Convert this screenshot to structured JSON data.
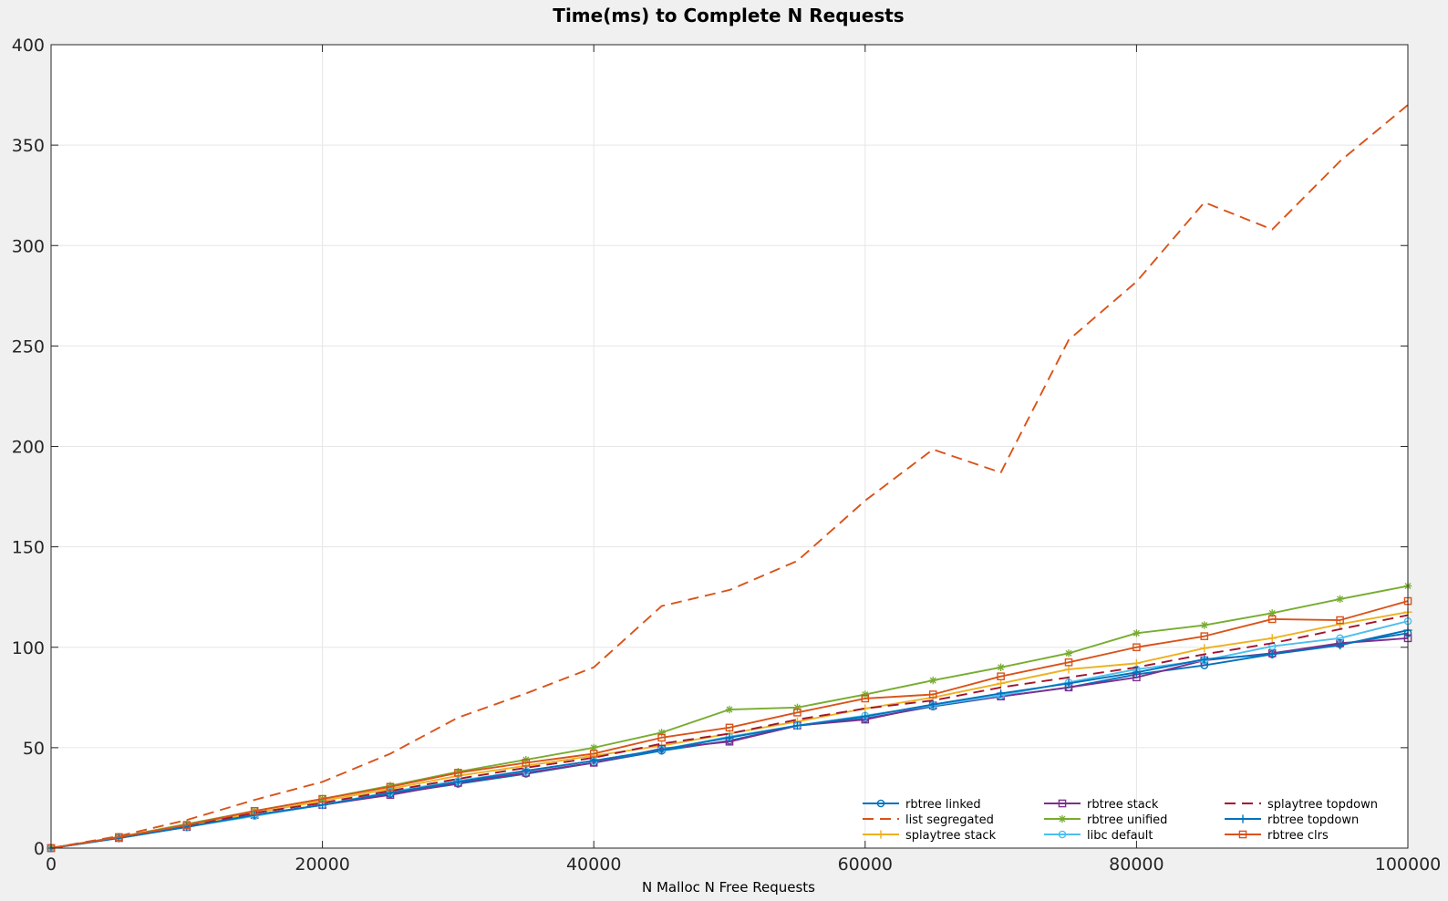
{
  "chart_data": {
    "type": "line",
    "title": "Time(ms) to Complete N Requests",
    "xlabel": "N Malloc N Free Requests",
    "ylabel": "",
    "xlim": [
      0,
      100000
    ],
    "ylim": [
      0,
      400
    ],
    "xticks": [
      "0",
      "20000",
      "40000",
      "60000",
      "80000",
      "100000"
    ],
    "yticks": [
      "0",
      "50",
      "100",
      "150",
      "200",
      "250",
      "300",
      "350",
      "400"
    ],
    "grid": true,
    "legend_placement": "bottom-right",
    "x": [
      0,
      5000,
      10000,
      15000,
      20000,
      25000,
      30000,
      35000,
      40000,
      45000,
      50000,
      55000,
      60000,
      65000,
      70000,
      75000,
      80000,
      85000,
      90000,
      95000,
      100000
    ],
    "series": [
      {
        "name": "rbtree linked",
        "color": "#0072BD",
        "dash": "solid",
        "marker": "circle",
        "values": [
          0,
          5,
          10.5,
          16.5,
          21.5,
          27,
          32,
          37,
          42.5,
          48.5,
          53.5,
          61,
          64.5,
          70.5,
          75.5,
          80,
          86.5,
          91,
          96.5,
          101.5,
          107
        ]
      },
      {
        "name": "list segregated",
        "color": "#D95319",
        "dash": "dashed",
        "marker": "none",
        "values": [
          0,
          6,
          14,
          24,
          33,
          47,
          65,
          77,
          90,
          120.5,
          128.5,
          143,
          173,
          198.5,
          187,
          253,
          282,
          321.5,
          308,
          342,
          370
        ]
      },
      {
        "name": "splaytree stack",
        "color": "#EDB120",
        "dash": "solid",
        "marker": "plus",
        "values": [
          0,
          5.5,
          11,
          17.5,
          23.5,
          29.5,
          36,
          41,
          46,
          51,
          57,
          63,
          69.5,
          75,
          82,
          89,
          92,
          99.5,
          104.5,
          111.5,
          117.5
        ]
      },
      {
        "name": "rbtree stack",
        "color": "#7E2F8E",
        "dash": "solid",
        "marker": "square",
        "values": [
          0,
          5,
          10.5,
          16.5,
          21.5,
          26.5,
          32.5,
          37.5,
          42.5,
          49.5,
          53,
          61,
          64,
          71,
          75.5,
          80,
          85,
          93.5,
          97,
          102,
          104.5
        ]
      },
      {
        "name": "rbtree unified",
        "color": "#77AC30",
        "dash": "solid",
        "marker": "asterisk",
        "values": [
          0,
          5.5,
          12,
          18.5,
          24.5,
          31,
          38,
          44,
          50,
          57.5,
          69,
          70,
          76.5,
          83.5,
          90,
          97,
          107,
          111,
          117,
          124,
          130.5
        ]
      },
      {
        "name": "libc default",
        "color": "#4DBEEE",
        "dash": "solid",
        "marker": "circle",
        "values": [
          0,
          5,
          10.5,
          16,
          21.5,
          28,
          33.5,
          38.5,
          43.5,
          49,
          55.5,
          61,
          66,
          71,
          76,
          82.5,
          89,
          93.5,
          100.5,
          104.5,
          113
        ]
      },
      {
        "name": "splaytree topdown",
        "color": "#A2142F",
        "dash": "dashed",
        "marker": "none",
        "values": [
          0,
          5.5,
          11,
          17.5,
          22.5,
          28.5,
          34.5,
          40,
          45,
          52,
          57,
          64,
          69.5,
          73.5,
          80,
          85,
          90,
          96.5,
          102,
          109,
          116
        ]
      },
      {
        "name": "rbtree topdown",
        "color": "#0072BD",
        "dash": "solid",
        "marker": "plus",
        "values": [
          0,
          5,
          10.5,
          16.5,
          21.5,
          27.5,
          33,
          38.5,
          43.5,
          49,
          55,
          61,
          65.5,
          71.5,
          77,
          82,
          87.5,
          94,
          96.5,
          101,
          108.5
        ]
      },
      {
        "name": "rbtree clrs",
        "color": "#D95319",
        "dash": "solid",
        "marker": "square",
        "values": [
          0,
          5.5,
          11.5,
          18.5,
          24.5,
          30.5,
          37.5,
          42.5,
          47,
          55,
          60,
          67.5,
          74.5,
          76.5,
          85.5,
          92.5,
          100,
          105.5,
          114,
          113.5,
          123
        ]
      }
    ]
  }
}
